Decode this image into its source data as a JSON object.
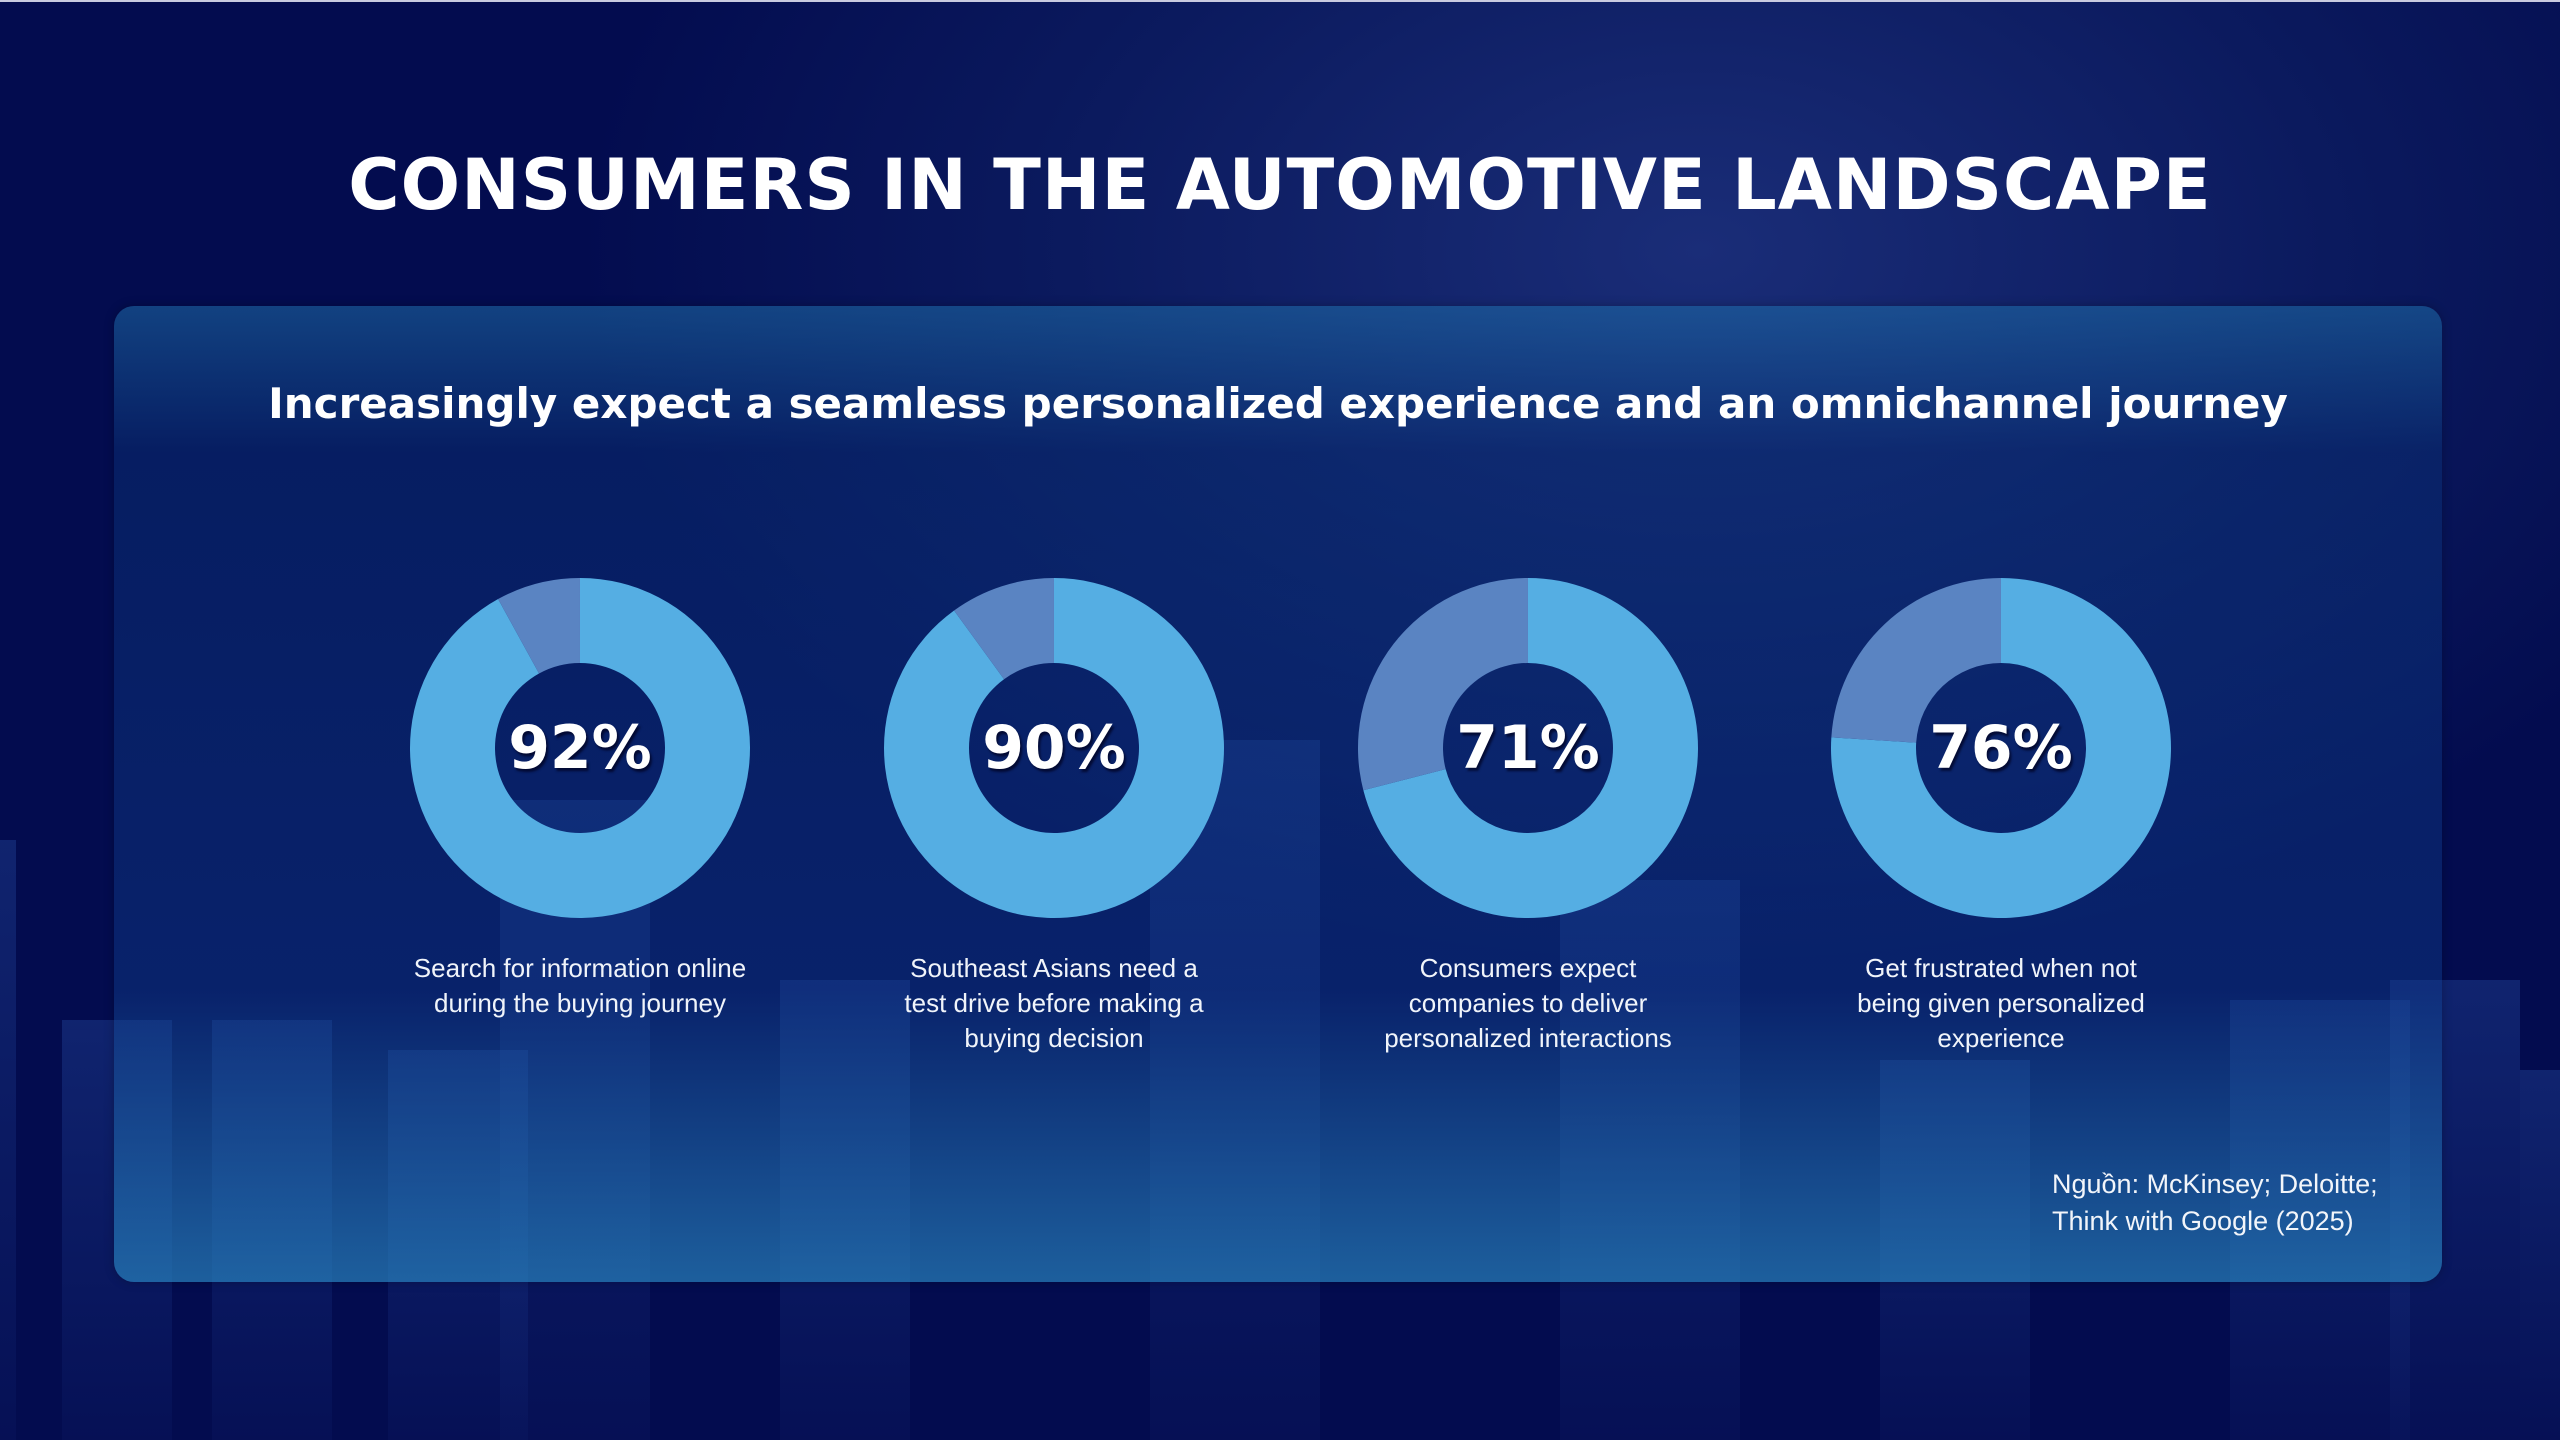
{
  "title": "CONSUMERS IN THE AUTOMOTIVE LANDSCAPE",
  "subtitle": "Increasingly expect a seamless personalized experience and an omnichannel journey",
  "source": {
    "line1": "Nguồn: McKinsey; Deloitte;",
    "line2": "Think with Google (2025)"
  },
  "colors": {
    "primary_segment": "#55aee3",
    "remainder_segment": "#5a84c2",
    "background": "#030c4f"
  },
  "chart_data": {
    "type": "pie",
    "variant": "donut",
    "title": "Increasingly expect a seamless personalized experience and an omnichannel journey",
    "items": [
      {
        "value": 92,
        "display": "92%",
        "label": [
          "Search for information online",
          "during the buying journey"
        ]
      },
      {
        "value": 90,
        "display": "90%",
        "label": [
          "Southeast Asians need a",
          "test drive before making a",
          "buying decision"
        ]
      },
      {
        "value": 71,
        "display": "71%",
        "label": [
          "Consumers expect",
          "companies to deliver",
          "personalized interactions"
        ]
      },
      {
        "value": 76,
        "display": "76%",
        "label": [
          "Get frustrated when not",
          "being given personalized",
          "experience"
        ]
      }
    ]
  }
}
